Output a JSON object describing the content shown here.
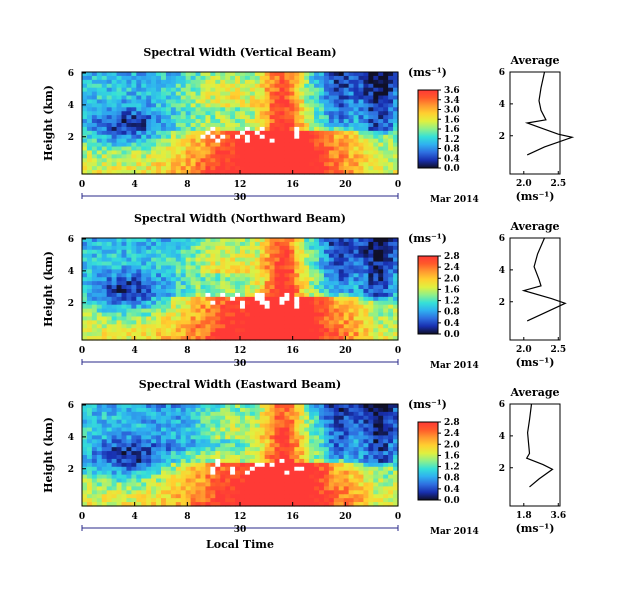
{
  "figure": {
    "xlabel_shared": "Local Time",
    "date_label": "Mar 2014",
    "date_day": "30",
    "colorbar_unit": "(ms⁻¹)",
    "profile_title": "Average",
    "profile_xlabel": "(ms⁻¹)"
  },
  "chart_data": [
    {
      "type": "heatmap",
      "title": "Spectral Width (Vertical Beam)",
      "ylabel": "Height (km)",
      "x_ticks": [
        "0",
        "4",
        "8",
        "12",
        "16",
        "20",
        "0"
      ],
      "y_ticks": [
        "6",
        "4",
        "2"
      ],
      "xlim_hours": [
        0,
        24
      ],
      "ylim_km": [
        0,
        6
      ],
      "colorbar": {
        "ticks": [
          "3.6",
          "3.4",
          "3.0",
          "1.6",
          "1.6",
          "1.2",
          "0.8",
          "0.4",
          "0.0"
        ],
        "range": [
          0.0,
          3.6
        ],
        "colors": [
          "#101028",
          "#1830b0",
          "#2e6fe0",
          "#2fb0f0",
          "#35e0d8",
          "#8ef08a",
          "#e0f040",
          "#ffd030",
          "#ff9a30",
          "#ff5a2a",
          "#ff3a36"
        ]
      },
      "profile": {
        "x_ticks": [
          "2.0",
          "2.5"
        ],
        "y_ticks": [
          "6",
          "4",
          "2"
        ],
        "points": [
          [
            2.3,
            6.0
          ],
          [
            2.25,
            5.0
          ],
          [
            2.22,
            4.2
          ],
          [
            2.25,
            3.6
          ],
          [
            2.32,
            3.0
          ],
          [
            2.05,
            2.8
          ],
          [
            2.5,
            2.1
          ],
          [
            2.7,
            1.9
          ],
          [
            2.3,
            1.3
          ],
          [
            2.05,
            0.8
          ]
        ]
      }
    },
    {
      "type": "heatmap",
      "title": "Spectral Width (Northward Beam)",
      "ylabel": "Height (km)",
      "x_ticks": [
        "0",
        "4",
        "8",
        "12",
        "16",
        "20",
        "0"
      ],
      "y_ticks": [
        "6",
        "4",
        "2"
      ],
      "xlim_hours": [
        0,
        24
      ],
      "ylim_km": [
        0,
        6
      ],
      "colorbar": {
        "ticks": [
          "2.8",
          "2.4",
          "2.0",
          "1.6",
          "1.2",
          "0.8",
          "0.4",
          "0.0"
        ],
        "range": [
          0.0,
          2.8
        ],
        "colors": [
          "#101028",
          "#1830b0",
          "#2e6fe0",
          "#2fb0f0",
          "#35e0d8",
          "#8ef08a",
          "#e0f040",
          "#ffd030",
          "#ff9a30",
          "#ff5a2a",
          "#ff3a36"
        ]
      },
      "profile": {
        "x_ticks": [
          "2.0",
          "2.5"
        ],
        "y_ticks": [
          "6",
          "4",
          "2"
        ],
        "points": [
          [
            2.3,
            6.0
          ],
          [
            2.2,
            5.0
          ],
          [
            2.15,
            4.2
          ],
          [
            2.22,
            3.4
          ],
          [
            2.25,
            3.0
          ],
          [
            2.0,
            2.7
          ],
          [
            2.4,
            2.2
          ],
          [
            2.6,
            1.9
          ],
          [
            2.3,
            1.3
          ],
          [
            2.05,
            0.8
          ]
        ]
      }
    },
    {
      "type": "heatmap",
      "title": "Spectral Width (Eastward Beam)",
      "ylabel": "Height (km)",
      "x_ticks": [
        "0",
        "4",
        "8",
        "12",
        "16",
        "20",
        "0"
      ],
      "y_ticks": [
        "6",
        "4",
        "2"
      ],
      "xlim_hours": [
        0,
        24
      ],
      "ylim_km": [
        0,
        6
      ],
      "colorbar": {
        "ticks": [
          "2.8",
          "2.4",
          "2.0",
          "1.6",
          "1.2",
          "0.8",
          "0.4",
          "0.0"
        ],
        "range": [
          0.0,
          2.8
        ],
        "colors": [
          "#101028",
          "#1830b0",
          "#2e6fe0",
          "#2fb0f0",
          "#35e0d8",
          "#8ef08a",
          "#e0f040",
          "#ffd030",
          "#ff9a30",
          "#ff5a2a",
          "#ff3a36"
        ]
      },
      "profile": {
        "x_ticks": [
          "1.8",
          "3.6"
        ],
        "y_ticks": [
          "6",
          "4",
          "2"
        ],
        "points": [
          [
            2.2,
            6.0
          ],
          [
            2.1,
            5.0
          ],
          [
            2.0,
            4.2
          ],
          [
            2.05,
            3.5
          ],
          [
            2.1,
            2.9
          ],
          [
            1.95,
            2.6
          ],
          [
            2.8,
            2.2
          ],
          [
            3.3,
            1.9
          ],
          [
            2.6,
            1.3
          ],
          [
            2.1,
            0.8
          ]
        ]
      }
    }
  ]
}
